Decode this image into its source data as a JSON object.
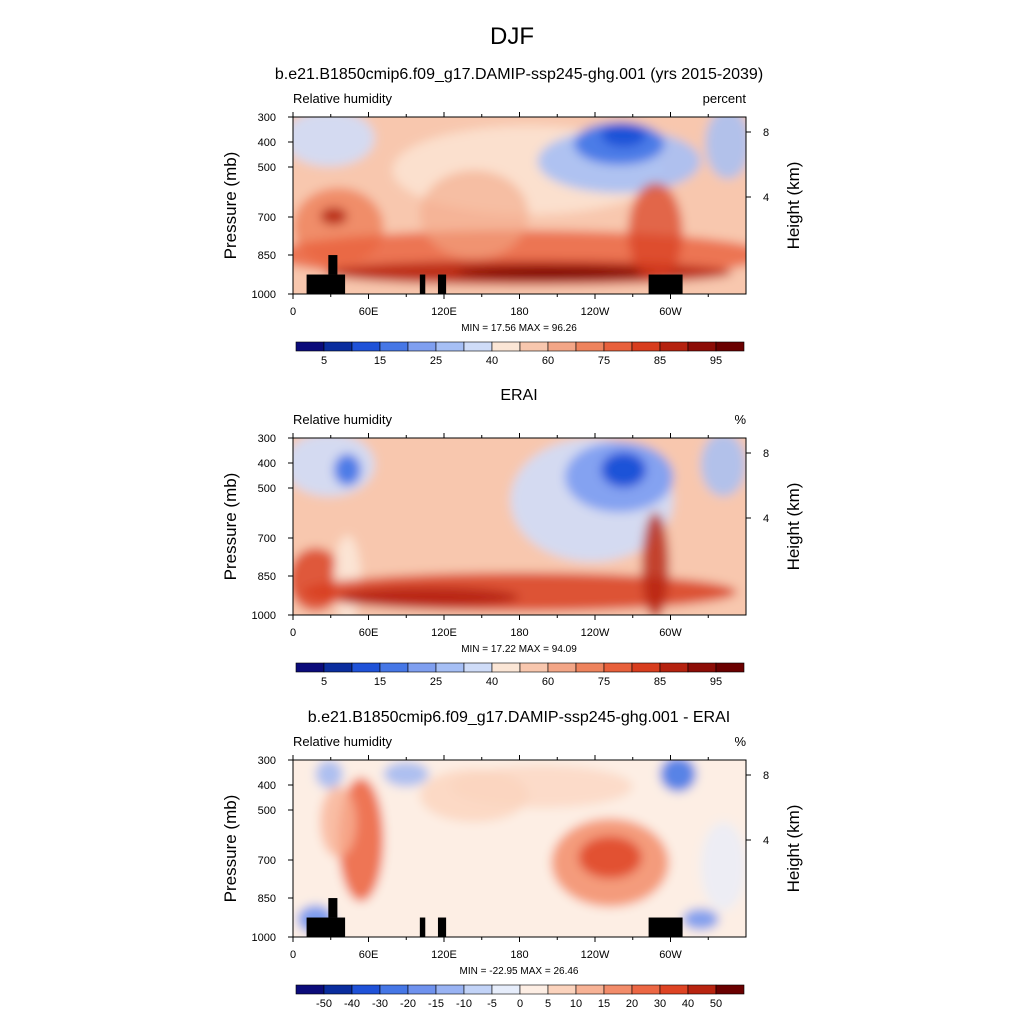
{
  "main_title": "DJF",
  "cbar_main_labels": [
    "5",
    "15",
    "25",
    "40",
    "60",
    "75",
    "85",
    "95"
  ],
  "cbar_main_colors": [
    "#0b0b7a",
    "#0a2d9e",
    "#1f52d8",
    "#4677e6",
    "#7f9ff0",
    "#a6bff5",
    "#cfdcf8",
    "#fbe6d6",
    "#f8c7ae",
    "#f3a687",
    "#ee835d",
    "#e8603b",
    "#d83d1e",
    "#b5220f",
    "#8c0c06",
    "#6a0000"
  ],
  "cbar_diff_labels": [
    "-50",
    "-40",
    "-30",
    "-20",
    "-15",
    "-10",
    "-5",
    "0",
    "5",
    "10",
    "15",
    "20",
    "30",
    "40",
    "50"
  ],
  "cbar_diff_colors": [
    "#0b0b7a",
    "#0a2d9e",
    "#1f52d8",
    "#4677e6",
    "#6f92ee",
    "#99b3f3",
    "#c2d3f7",
    "#e6edfb",
    "#fdeee4",
    "#fbd3bd",
    "#f7b295",
    "#f28c6a",
    "#ec6744",
    "#de4424",
    "#b82410",
    "#6a0000"
  ],
  "chart_data": [
    {
      "type": "heatmap",
      "title": "b.e21.B1850cmip6.f09_g17.DAMIP-ssp245-ghg.001 (yrs 2015-2039)",
      "left_label": "Relative humidity",
      "right_label": "percent",
      "ylabel": "Pressure (mb)",
      "ylabel_right": "Height (km)",
      "x_ticks": [
        "0",
        "60E",
        "120E",
        "180",
        "120W",
        "60W"
      ],
      "y_ticks": [
        "300",
        "400",
        "500",
        "700",
        "850",
        "1000"
      ],
      "y2_ticks": [
        "8",
        "4"
      ],
      "min": 17.56,
      "max": 96.26,
      "stats": "MIN =  17.56  MAX =  96.26",
      "colorbar": "main",
      "terrain": true
    },
    {
      "type": "heatmap",
      "title": "ERAI",
      "left_label": "Relative humidity",
      "right_label": "%",
      "ylabel": "Pressure (mb)",
      "ylabel_right": "Height (km)",
      "x_ticks": [
        "0",
        "60E",
        "120E",
        "180",
        "120W",
        "60W"
      ],
      "y_ticks": [
        "300",
        "400",
        "500",
        "700",
        "850",
        "1000"
      ],
      "y2_ticks": [
        "8",
        "4"
      ],
      "min": 17.22,
      "max": 94.09,
      "stats": "MIN =  17.22  MAX =  94.09",
      "colorbar": "main",
      "terrain": false
    },
    {
      "type": "heatmap",
      "title": "b.e21.B1850cmip6.f09_g17.DAMIP-ssp245-ghg.001 - ERAI",
      "left_label": "Relative humidity",
      "right_label": "%",
      "ylabel": "Pressure (mb)",
      "ylabel_right": "Height (km)",
      "x_ticks": [
        "0",
        "60E",
        "120E",
        "180",
        "120W",
        "60W"
      ],
      "y_ticks": [
        "300",
        "400",
        "500",
        "700",
        "850",
        "1000"
      ],
      "y2_ticks": [
        "8",
        "4"
      ],
      "min": -22.95,
      "max": 26.46,
      "stats": "MIN = -22.95  MAX =  26.46",
      "colorbar": "diff",
      "terrain": true
    }
  ]
}
